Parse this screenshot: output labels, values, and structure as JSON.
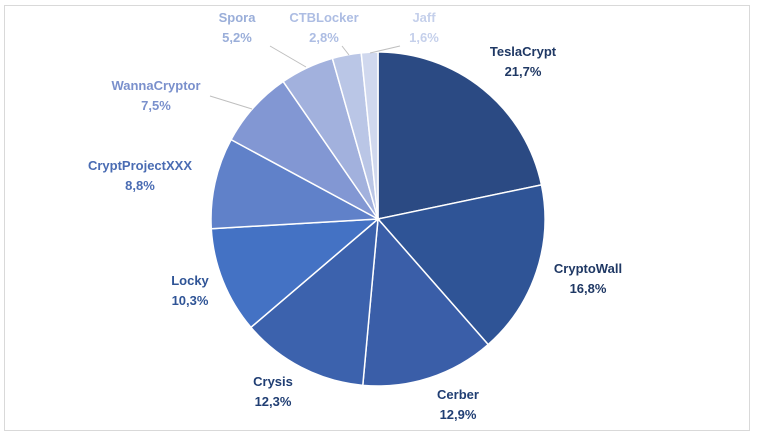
{
  "chart_data": {
    "type": "pie",
    "title": "",
    "unit": "%",
    "start_angle_deg": 0,
    "direction": "clockwise",
    "legend": "none",
    "slices": [
      {
        "name": "TeslaCrypt",
        "value": 21.7,
        "label": "21,7%",
        "color": "#2b4a83",
        "label_color": "#1f3864"
      },
      {
        "name": "CryptoWall",
        "value": 16.8,
        "label": "16,8%",
        "color": "#2f5496",
        "label_color": "#1f3864"
      },
      {
        "name": "Cerber",
        "value": 12.9,
        "label": "12,9%",
        "color": "#3a5ea8",
        "label_color": "#203e73"
      },
      {
        "name": "Crysis",
        "value": 12.3,
        "label": "12,3%",
        "color": "#3c62ad",
        "label_color": "#203e73"
      },
      {
        "name": "Locky",
        "value": 10.3,
        "label": "10,3%",
        "color": "#4472c4",
        "label_color": "#2f5496"
      },
      {
        "name": "CryptProjectXXX",
        "value": 8.8,
        "label": "8,8%",
        "color": "#6081c9",
        "label_color": "#4a6cb3"
      },
      {
        "name": "WannaCryptor",
        "value": 7.5,
        "label": "7,5%",
        "color": "#8297d3",
        "label_color": "#7a90cc"
      },
      {
        "name": "Spora",
        "value": 5.2,
        "label": "5,2%",
        "color": "#a2b1dd",
        "label_color": "#9aaed9"
      },
      {
        "name": "CTBLocker",
        "value": 2.8,
        "label": "2,8%",
        "color": "#bac6e6",
        "label_color": "#adbde3"
      },
      {
        "name": "Jaff",
        "value": 1.6,
        "label": "1,6%",
        "color": "#d0d8ee",
        "label_color": "#c5d0eb"
      }
    ]
  }
}
